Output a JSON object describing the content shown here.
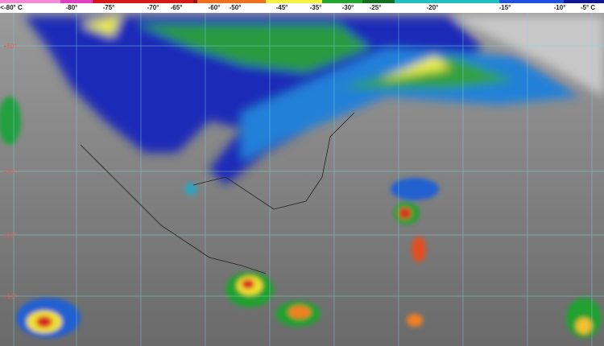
{
  "color_scale": {
    "unit": "C",
    "ticks": [
      "<-80° C",
      "-80°",
      "-75°",
      "-70°",
      "-65°",
      "-60°",
      "-50°",
      "-45°",
      "-35°",
      "-30°",
      "-25°",
      "-20°",
      "-15°",
      "-10°",
      "-5° C"
    ],
    "colors": [
      "#f28ad8",
      "#e040c0",
      "#d81818",
      "#a01010",
      "#f07020",
      "#f8f040",
      "#20a830",
      "#107020",
      "#20c0c0",
      "#2050e0",
      "#101890"
    ]
  },
  "latitude_labels": [
    "+50°",
    "+30°",
    "+20°",
    "+10°"
  ],
  "grid_color": "#7fd8d8",
  "ocean_color": "#7a7a7a"
}
